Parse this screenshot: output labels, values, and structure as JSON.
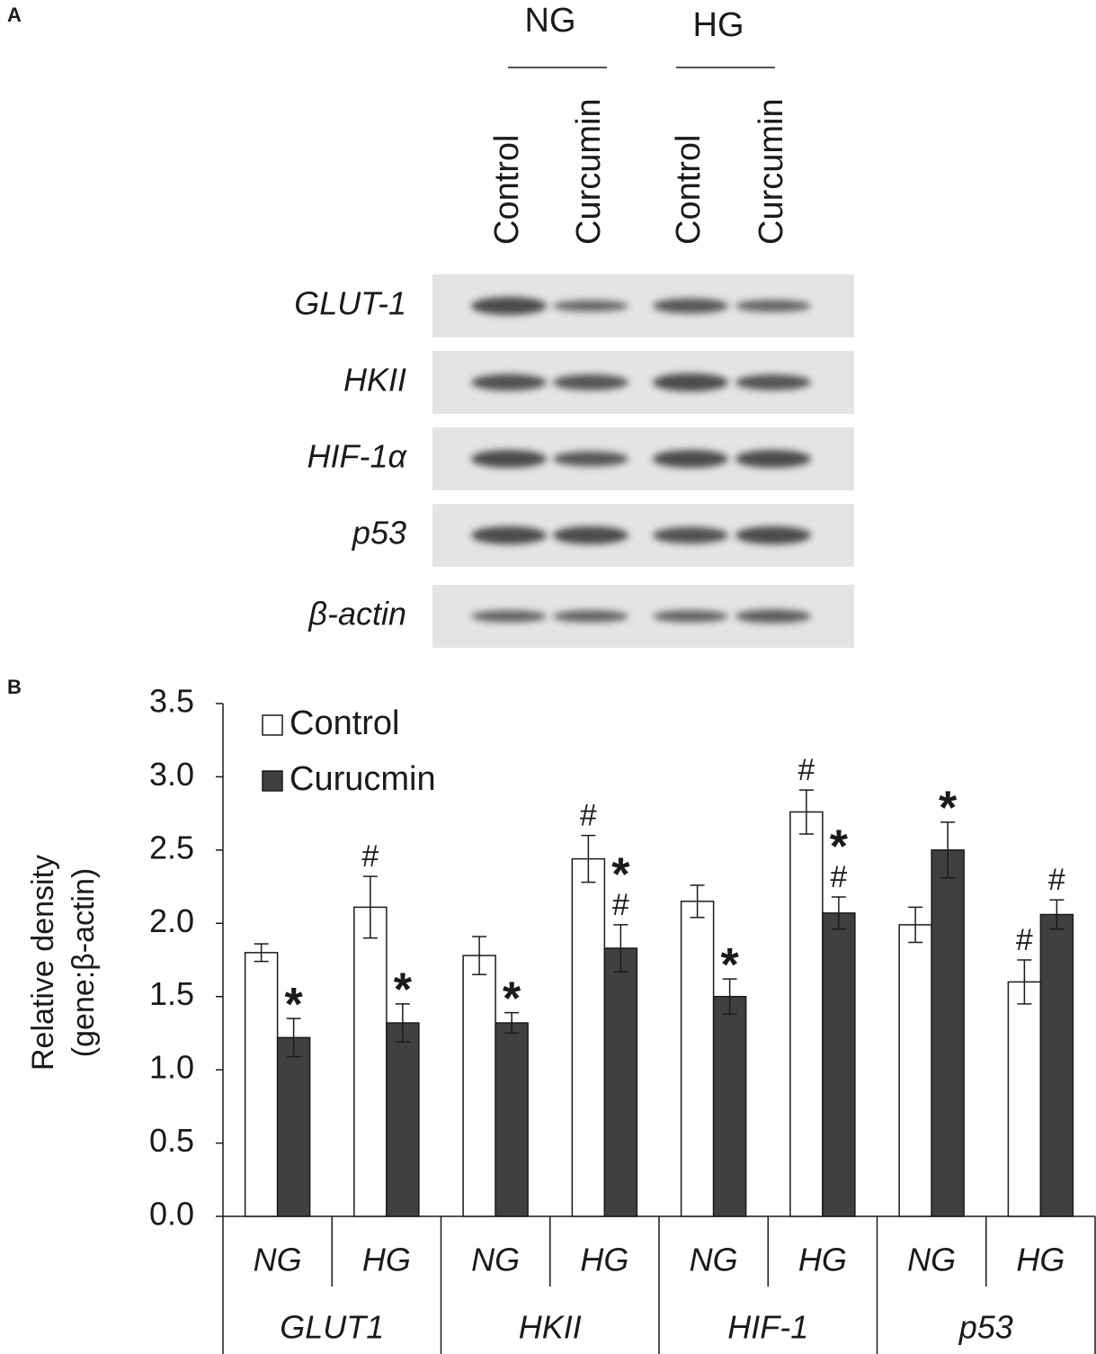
{
  "panel_a": {
    "label": "A",
    "groups": [
      "NG",
      "HG"
    ],
    "lanes": [
      "Control",
      "Curcumin",
      "Control",
      "Curcumin"
    ],
    "rows": [
      "GLUT-1",
      "HKII",
      "HIF-1α",
      "p53",
      "β-actin"
    ]
  },
  "chart_data": {
    "type": "bar",
    "panel_label": "B",
    "y_label": [
      "Relative density",
      "(gene:β-actin)"
    ],
    "categories": [
      "NG",
      "HG",
      "NG",
      "HG",
      "NG",
      "HG",
      "NG",
      "HG"
    ],
    "groups": [
      "GLUT1",
      "HKII",
      "HIF-1",
      "p53"
    ],
    "series": [
      {
        "name": "Control",
        "color": "#ffffff",
        "values": [
          1.8,
          2.11,
          1.78,
          2.44,
          2.15,
          2.76,
          1.99,
          1.6
        ],
        "errors": [
          0.06,
          0.21,
          0.13,
          0.16,
          0.11,
          0.15,
          0.12,
          0.15
        ],
        "annotations": [
          null,
          [
            "#"
          ],
          null,
          [
            "#"
          ],
          null,
          [
            "#"
          ],
          null,
          [
            "#"
          ]
        ]
      },
      {
        "name": "Curucmin",
        "color": "#404040",
        "values": [
          1.22,
          1.32,
          1.32,
          1.83,
          1.5,
          2.07,
          2.5,
          2.06
        ],
        "errors": [
          0.13,
          0.13,
          0.07,
          0.16,
          0.12,
          0.11,
          0.19,
          0.1
        ],
        "annotations": [
          [
            "*"
          ],
          [
            "*"
          ],
          [
            "*"
          ],
          [
            "*",
            "#"
          ],
          [
            "*"
          ],
          [
            "*",
            "#"
          ],
          [
            "*"
          ],
          [
            "#"
          ]
        ]
      }
    ],
    "ylim": [
      0,
      3.5
    ],
    "yticks": [
      {
        "value": 0,
        "label": "0.0"
      },
      {
        "value": 0.5,
        "label": "0.5"
      },
      {
        "value": 1,
        "label": "1.0"
      },
      {
        "value": 1.5,
        "label": "1.5"
      },
      {
        "value": 2,
        "label": "2.0"
      },
      {
        "value": 2.5,
        "label": "2.5"
      },
      {
        "value": 3,
        "label": "3.0"
      },
      {
        "value": 3.5,
        "label": "3.5"
      }
    ]
  }
}
